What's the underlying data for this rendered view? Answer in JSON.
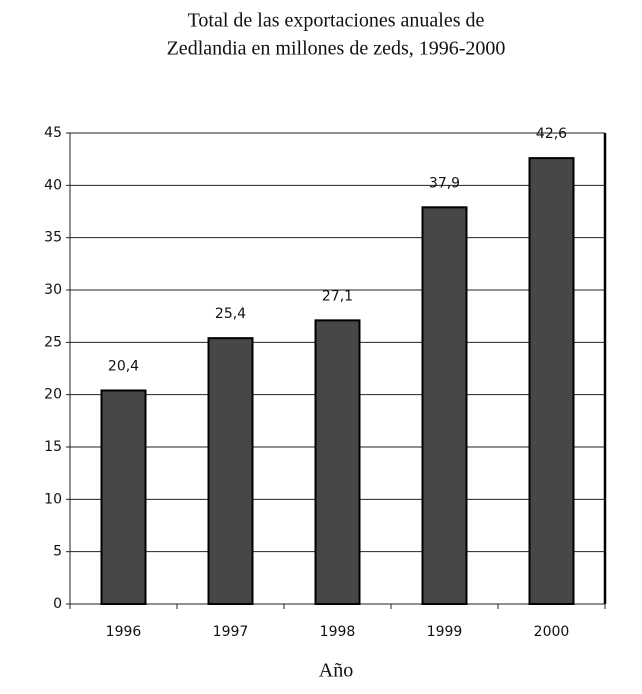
{
  "chart_data": {
    "type": "bar",
    "title": [
      "Total de las exportaciones anuales de",
      "Zedlandia en millones de zeds, 1996-2000"
    ],
    "x_label": "Año",
    "categories": [
      "1996",
      "1997",
      "1998",
      "1999",
      "2000"
    ],
    "values": [
      20.4,
      25.4,
      27.1,
      37.9,
      42.6
    ],
    "value_labels": [
      "20,4",
      "25,4",
      "27,1",
      "37,9",
      "42,6"
    ],
    "color": "#474747",
    "ylim": [
      0,
      45
    ],
    "yticks": [
      0,
      5,
      10,
      15,
      20,
      25,
      30,
      35,
      40,
      45
    ],
    "grid": true
  }
}
